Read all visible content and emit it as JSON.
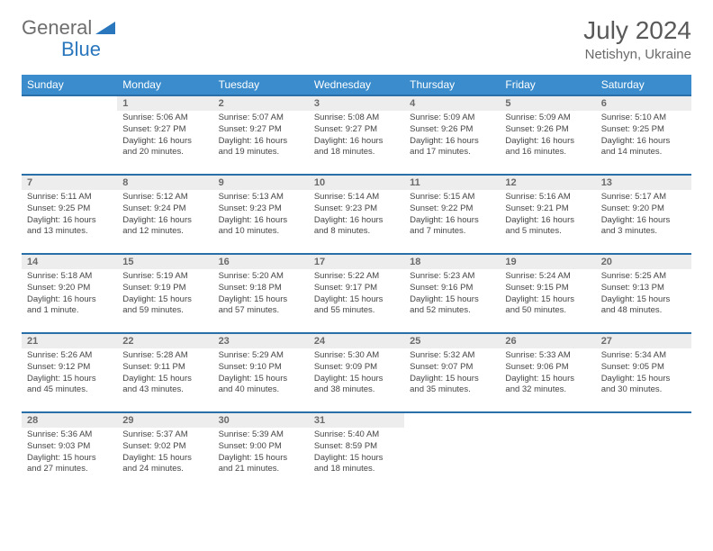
{
  "logo": {
    "text_a": "General",
    "text_b": "Blue"
  },
  "title": "July 2024",
  "location": "Netishyn, Ukraine",
  "colors": {
    "header_bg": "#3a8ccc",
    "row_border": "#2a6fa8",
    "daynum_bg": "#ededed",
    "text_muted": "#6a6a6a"
  },
  "weekdays": [
    "Sunday",
    "Monday",
    "Tuesday",
    "Wednesday",
    "Thursday",
    "Friday",
    "Saturday"
  ],
  "weeks": [
    [
      {
        "n": "",
        "sr": "",
        "ss": "",
        "dl": ""
      },
      {
        "n": "1",
        "sr": "Sunrise: 5:06 AM",
        "ss": "Sunset: 9:27 PM",
        "dl": "Daylight: 16 hours and 20 minutes."
      },
      {
        "n": "2",
        "sr": "Sunrise: 5:07 AM",
        "ss": "Sunset: 9:27 PM",
        "dl": "Daylight: 16 hours and 19 minutes."
      },
      {
        "n": "3",
        "sr": "Sunrise: 5:08 AM",
        "ss": "Sunset: 9:27 PM",
        "dl": "Daylight: 16 hours and 18 minutes."
      },
      {
        "n": "4",
        "sr": "Sunrise: 5:09 AM",
        "ss": "Sunset: 9:26 PM",
        "dl": "Daylight: 16 hours and 17 minutes."
      },
      {
        "n": "5",
        "sr": "Sunrise: 5:09 AM",
        "ss": "Sunset: 9:26 PM",
        "dl": "Daylight: 16 hours and 16 minutes."
      },
      {
        "n": "6",
        "sr": "Sunrise: 5:10 AM",
        "ss": "Sunset: 9:25 PM",
        "dl": "Daylight: 16 hours and 14 minutes."
      }
    ],
    [
      {
        "n": "7",
        "sr": "Sunrise: 5:11 AM",
        "ss": "Sunset: 9:25 PM",
        "dl": "Daylight: 16 hours and 13 minutes."
      },
      {
        "n": "8",
        "sr": "Sunrise: 5:12 AM",
        "ss": "Sunset: 9:24 PM",
        "dl": "Daylight: 16 hours and 12 minutes."
      },
      {
        "n": "9",
        "sr": "Sunrise: 5:13 AM",
        "ss": "Sunset: 9:23 PM",
        "dl": "Daylight: 16 hours and 10 minutes."
      },
      {
        "n": "10",
        "sr": "Sunrise: 5:14 AM",
        "ss": "Sunset: 9:23 PM",
        "dl": "Daylight: 16 hours and 8 minutes."
      },
      {
        "n": "11",
        "sr": "Sunrise: 5:15 AM",
        "ss": "Sunset: 9:22 PM",
        "dl": "Daylight: 16 hours and 7 minutes."
      },
      {
        "n": "12",
        "sr": "Sunrise: 5:16 AM",
        "ss": "Sunset: 9:21 PM",
        "dl": "Daylight: 16 hours and 5 minutes."
      },
      {
        "n": "13",
        "sr": "Sunrise: 5:17 AM",
        "ss": "Sunset: 9:20 PM",
        "dl": "Daylight: 16 hours and 3 minutes."
      }
    ],
    [
      {
        "n": "14",
        "sr": "Sunrise: 5:18 AM",
        "ss": "Sunset: 9:20 PM",
        "dl": "Daylight: 16 hours and 1 minute."
      },
      {
        "n": "15",
        "sr": "Sunrise: 5:19 AM",
        "ss": "Sunset: 9:19 PM",
        "dl": "Daylight: 15 hours and 59 minutes."
      },
      {
        "n": "16",
        "sr": "Sunrise: 5:20 AM",
        "ss": "Sunset: 9:18 PM",
        "dl": "Daylight: 15 hours and 57 minutes."
      },
      {
        "n": "17",
        "sr": "Sunrise: 5:22 AM",
        "ss": "Sunset: 9:17 PM",
        "dl": "Daylight: 15 hours and 55 minutes."
      },
      {
        "n": "18",
        "sr": "Sunrise: 5:23 AM",
        "ss": "Sunset: 9:16 PM",
        "dl": "Daylight: 15 hours and 52 minutes."
      },
      {
        "n": "19",
        "sr": "Sunrise: 5:24 AM",
        "ss": "Sunset: 9:15 PM",
        "dl": "Daylight: 15 hours and 50 minutes."
      },
      {
        "n": "20",
        "sr": "Sunrise: 5:25 AM",
        "ss": "Sunset: 9:13 PM",
        "dl": "Daylight: 15 hours and 48 minutes."
      }
    ],
    [
      {
        "n": "21",
        "sr": "Sunrise: 5:26 AM",
        "ss": "Sunset: 9:12 PM",
        "dl": "Daylight: 15 hours and 45 minutes."
      },
      {
        "n": "22",
        "sr": "Sunrise: 5:28 AM",
        "ss": "Sunset: 9:11 PM",
        "dl": "Daylight: 15 hours and 43 minutes."
      },
      {
        "n": "23",
        "sr": "Sunrise: 5:29 AM",
        "ss": "Sunset: 9:10 PM",
        "dl": "Daylight: 15 hours and 40 minutes."
      },
      {
        "n": "24",
        "sr": "Sunrise: 5:30 AM",
        "ss": "Sunset: 9:09 PM",
        "dl": "Daylight: 15 hours and 38 minutes."
      },
      {
        "n": "25",
        "sr": "Sunrise: 5:32 AM",
        "ss": "Sunset: 9:07 PM",
        "dl": "Daylight: 15 hours and 35 minutes."
      },
      {
        "n": "26",
        "sr": "Sunrise: 5:33 AM",
        "ss": "Sunset: 9:06 PM",
        "dl": "Daylight: 15 hours and 32 minutes."
      },
      {
        "n": "27",
        "sr": "Sunrise: 5:34 AM",
        "ss": "Sunset: 9:05 PM",
        "dl": "Daylight: 15 hours and 30 minutes."
      }
    ],
    [
      {
        "n": "28",
        "sr": "Sunrise: 5:36 AM",
        "ss": "Sunset: 9:03 PM",
        "dl": "Daylight: 15 hours and 27 minutes."
      },
      {
        "n": "29",
        "sr": "Sunrise: 5:37 AM",
        "ss": "Sunset: 9:02 PM",
        "dl": "Daylight: 15 hours and 24 minutes."
      },
      {
        "n": "30",
        "sr": "Sunrise: 5:39 AM",
        "ss": "Sunset: 9:00 PM",
        "dl": "Daylight: 15 hours and 21 minutes."
      },
      {
        "n": "31",
        "sr": "Sunrise: 5:40 AM",
        "ss": "Sunset: 8:59 PM",
        "dl": "Daylight: 15 hours and 18 minutes."
      },
      {
        "n": "",
        "sr": "",
        "ss": "",
        "dl": ""
      },
      {
        "n": "",
        "sr": "",
        "ss": "",
        "dl": ""
      },
      {
        "n": "",
        "sr": "",
        "ss": "",
        "dl": ""
      }
    ]
  ]
}
